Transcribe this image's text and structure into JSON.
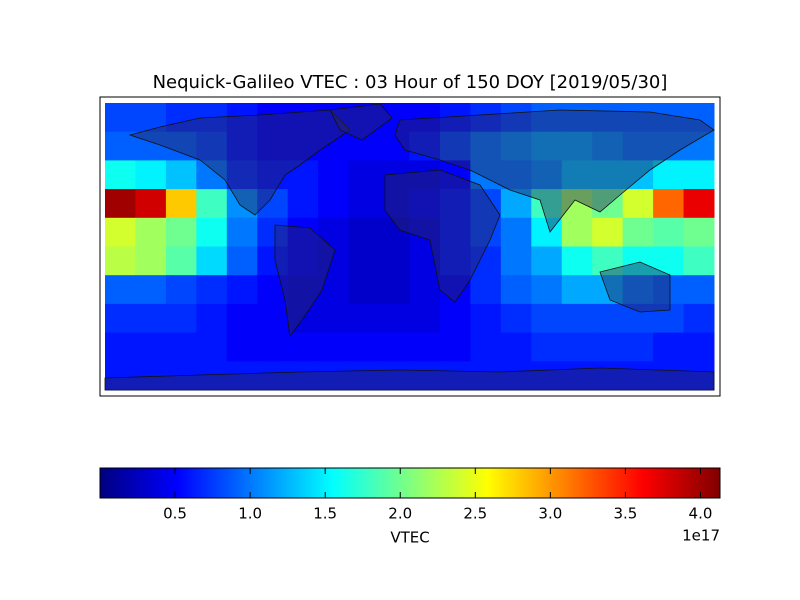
{
  "chart_data": {
    "type": "heatmap",
    "title": "Nequick-Galileo VTEC : 03 Hour of 150 DOY [2019/05/30]",
    "colormap": "jet",
    "colorbar_label": "VTEC",
    "colorbar_offset": "1e17",
    "clim": [
      0,
      4.13
    ],
    "cticks": [
      0.5,
      {
        "value": 1,
        "label": "1.0"
      },
      1.5,
      {
        "value": 2,
        "label": "2.0"
      },
      2.5,
      {
        "value": 3,
        "label": "3.0"
      },
      3.5,
      {
        "value": 4,
        "label": "4.0"
      }
    ],
    "values": [
      [
        0.8,
        0.8,
        0.7,
        0.7,
        0.6,
        0.5,
        0.5,
        0.5,
        0.5,
        0.5,
        0.5,
        0.6,
        0.7,
        0.8,
        0.9,
        0.9,
        0.9,
        0.9,
        0.9,
        0.9
      ],
      [
        0.9,
        0.9,
        0.9,
        0.8,
        0.6,
        0.5,
        0.5,
        0.5,
        0.5,
        0.5,
        0.6,
        0.8,
        1.0,
        1.1,
        1.2,
        1.2,
        1.1,
        1.0,
        1.0,
        1.0
      ],
      [
        1.6,
        1.5,
        1.3,
        1.0,
        0.7,
        0.6,
        0.6,
        0.5,
        0.4,
        0.4,
        0.4,
        0.5,
        1.0,
        1.0,
        1.1,
        1.3,
        1.3,
        1.3,
        1.5,
        1.5
      ],
      [
        4.0,
        3.8,
        2.8,
        1.8,
        1.1,
        0.8,
        0.6,
        0.5,
        0.4,
        0.4,
        0.5,
        0.6,
        0.8,
        1.2,
        1.8,
        2.2,
        2.0,
        2.4,
        3.2,
        3.7
      ],
      [
        2.4,
        2.2,
        2.0,
        1.6,
        1.0,
        0.7,
        0.5,
        0.4,
        0.3,
        0.3,
        0.4,
        0.6,
        0.8,
        1.0,
        1.5,
        2.2,
        2.4,
        2.0,
        1.9,
        2.0
      ],
      [
        2.3,
        2.2,
        1.9,
        1.4,
        0.9,
        0.6,
        0.5,
        0.4,
        0.3,
        0.3,
        0.4,
        0.6,
        0.7,
        1.0,
        1.2,
        1.6,
        1.8,
        1.6,
        1.6,
        1.8
      ],
      [
        0.9,
        0.9,
        0.8,
        0.7,
        0.6,
        0.5,
        0.4,
        0.4,
        0.3,
        0.3,
        0.4,
        0.5,
        0.7,
        0.9,
        1.0,
        1.2,
        1.2,
        1.0,
        0.9,
        0.9
      ],
      [
        0.7,
        0.7,
        0.7,
        0.6,
        0.5,
        0.5,
        0.4,
        0.4,
        0.4,
        0.4,
        0.4,
        0.5,
        0.6,
        0.7,
        0.8,
        0.8,
        0.8,
        0.8,
        0.8,
        0.7
      ],
      [
        0.6,
        0.6,
        0.6,
        0.6,
        0.5,
        0.5,
        0.5,
        0.5,
        0.5,
        0.5,
        0.5,
        0.5,
        0.6,
        0.6,
        0.7,
        0.7,
        0.7,
        0.7,
        0.6,
        0.6
      ],
      [
        0.6,
        0.6,
        0.6,
        0.6,
        0.6,
        0.6,
        0.6,
        0.6,
        0.6,
        0.6,
        0.6,
        0.6,
        0.6,
        0.6,
        0.6,
        0.6,
        0.6,
        0.6,
        0.6,
        0.6
      ]
    ]
  }
}
